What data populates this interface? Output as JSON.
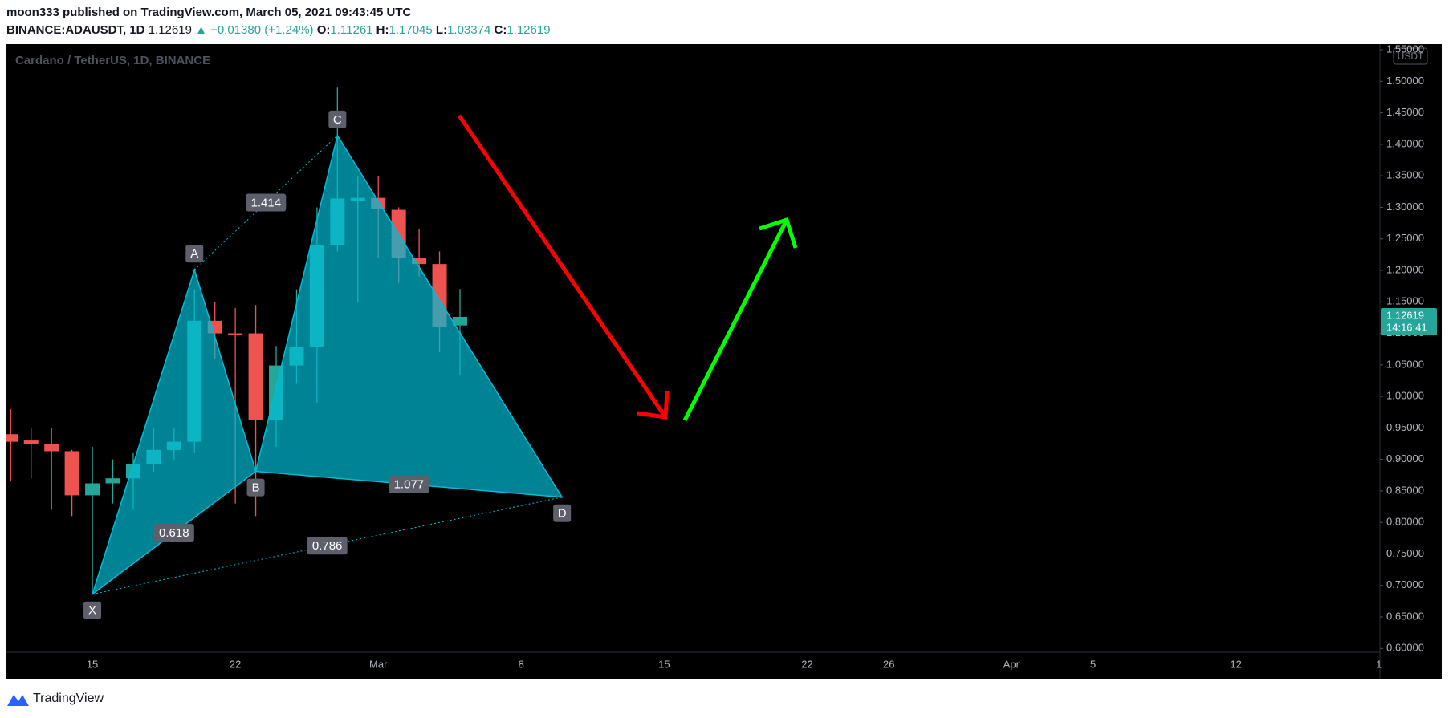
{
  "header": {
    "line1": "moon333 published on TradingView.com, March 05, 2021 09:43:45 UTC",
    "symbol": "BINANCE:ADAUSDT, 1D",
    "last": "1.12619",
    "change": "▲ +0.01380 (+1.24%)",
    "o_label": "O:",
    "o": "1.11261",
    "h_label": "H:",
    "h": "1.17045",
    "l_label": "L:",
    "l": "1.03374",
    "c_label": "C:",
    "c": "1.12619"
  },
  "chart_data": {
    "type": "candlestick",
    "title": "Cardano / TetherUS, 1D, BINANCE",
    "currency": "USDT",
    "categories": [
      null,
      null,
      null,
      null,
      "15",
      null,
      null,
      null,
      null,
      null,
      null,
      "22",
      null,
      null,
      null,
      null,
      null,
      null,
      "Mar",
      null,
      null,
      null,
      null,
      null,
      null,
      "8",
      null,
      null,
      null,
      null,
      null,
      null,
      "15",
      null,
      null,
      null,
      null,
      null,
      null,
      "22",
      null,
      null,
      null,
      "26",
      null,
      null,
      null,
      null,
      null,
      "Apr",
      null,
      null,
      null,
      "5",
      null,
      null,
      null,
      null,
      null,
      null,
      "12",
      null,
      null,
      null,
      null,
      null,
      null,
      "1"
    ],
    "open": [
      0.94,
      0.93,
      0.925,
      0.913,
      0.843,
      0.862,
      0.87,
      0.892,
      0.915,
      0.928,
      1.12,
      1.1,
      1.1,
      0.963,
      1.049,
      1.078,
      1.24,
      1.31,
      1.315,
      1.296,
      1.22,
      1.21,
      1.11261,
      null,
      null,
      null,
      null,
      null,
      null,
      null,
      null,
      null,
      null,
      null,
      null,
      null,
      null,
      null,
      null,
      null,
      null,
      null,
      null,
      null,
      null,
      null,
      null,
      null,
      null,
      null,
      null,
      null,
      null,
      null,
      null,
      null,
      null,
      null,
      null,
      null,
      null,
      null,
      null,
      null,
      null,
      null,
      null,
      null
    ],
    "high": [
      0.98,
      0.95,
      0.95,
      0.915,
      0.92,
      0.9,
      0.91,
      0.95,
      0.95,
      1.17,
      1.15,
      1.14,
      1.145,
      1.08,
      1.17,
      1.3,
      1.49,
      1.35,
      1.35,
      1.3,
      1.265,
      1.23,
      1.17045,
      null,
      null,
      null,
      null,
      null,
      null,
      null,
      null,
      null,
      null,
      null,
      null,
      null,
      null,
      null,
      null,
      null,
      null,
      null,
      null,
      null,
      null,
      null,
      null,
      null,
      null,
      null,
      null,
      null,
      null,
      null,
      null,
      null,
      null,
      null,
      null,
      null,
      null,
      null,
      null,
      null,
      null,
      null,
      null,
      null
    ],
    "low": [
      0.865,
      0.87,
      0.82,
      0.81,
      0.69,
      0.83,
      0.82,
      0.88,
      0.9,
      0.91,
      1.06,
      0.83,
      0.81,
      0.92,
      1.02,
      0.99,
      1.23,
      1.15,
      1.22,
      1.18,
      1.19,
      1.07,
      1.03374,
      null,
      null,
      null,
      null,
      null,
      null,
      null,
      null,
      null,
      null,
      null,
      null,
      null,
      null,
      null,
      null,
      null,
      null,
      null,
      null,
      null,
      null,
      null,
      null,
      null,
      null,
      null,
      null,
      null,
      null,
      null,
      null,
      null,
      null,
      null,
      null,
      null,
      null,
      null,
      null,
      null,
      null,
      null,
      null,
      null
    ],
    "close": [
      0.928,
      0.925,
      0.913,
      0.843,
      0.862,
      0.87,
      0.892,
      0.915,
      0.928,
      1.12,
      1.1,
      1.097,
      0.963,
      1.049,
      1.078,
      1.24,
      1.314,
      1.315,
      1.298,
      1.22,
      1.21,
      1.11,
      1.12619,
      null,
      null,
      null,
      null,
      null,
      null,
      null,
      null,
      null,
      null,
      null,
      null,
      null,
      null,
      null,
      null,
      null,
      null,
      null,
      null,
      null,
      null,
      null,
      null,
      null,
      null,
      null,
      null,
      null,
      null,
      null,
      null,
      null,
      null,
      null,
      null,
      null,
      null,
      null,
      null,
      null,
      null,
      null,
      null,
      null
    ],
    "up_color": "#26a69a",
    "down_color": "#ef5350",
    "ylim": [
      0.594,
      1.559
    ],
    "yticks": [
      {
        "value": 0.6,
        "label": "0.60000"
      },
      {
        "value": 0.65,
        "label": "0.65000"
      },
      {
        "value": 0.7,
        "label": "0.70000"
      },
      {
        "value": 0.75,
        "label": "0.75000"
      },
      {
        "value": 0.8,
        "label": "0.80000"
      },
      {
        "value": 0.85,
        "label": "0.85000"
      },
      {
        "value": 0.9,
        "label": "0.90000"
      },
      {
        "value": 0.95,
        "label": "0.95000"
      },
      {
        "value": 1.0,
        "label": "1.00000"
      },
      {
        "value": 1.05,
        "label": "1.05000"
      },
      {
        "value": 1.1,
        "label": "1.10000"
      },
      {
        "value": 1.15,
        "label": "1.15000"
      },
      {
        "value": 1.2,
        "label": "1.20000"
      },
      {
        "value": 1.25,
        "label": "1.25000"
      },
      {
        "value": 1.3,
        "label": "1.30000"
      },
      {
        "value": 1.35,
        "label": "1.35000"
      },
      {
        "value": 1.4,
        "label": "1.40000"
      },
      {
        "value": 1.45,
        "label": "1.45000"
      },
      {
        "value": 1.5,
        "label": "1.50000"
      },
      {
        "value": 1.55,
        "label": "1.55000"
      }
    ],
    "grid": false,
    "last_price": {
      "value": 1.12619,
      "label": "1.12619"
    },
    "countdown": "14:16:41",
    "pattern": {
      "color": "#00bcd4",
      "points": [
        {
          "label": "X",
          "x": 4,
          "y": 0.686
        },
        {
          "label": "A",
          "x": 9,
          "y": 1.201
        },
        {
          "label": "B",
          "x": 12,
          "y": 0.881
        },
        {
          "label": "C",
          "x": 16,
          "y": 1.414
        },
        {
          "label": "D",
          "x": 27,
          "y": 0.84
        }
      ],
      "ratios": [
        0.618,
        1.414,
        1.077,
        0.786
      ]
    }
  },
  "footer": {
    "brand": "TradingView"
  }
}
